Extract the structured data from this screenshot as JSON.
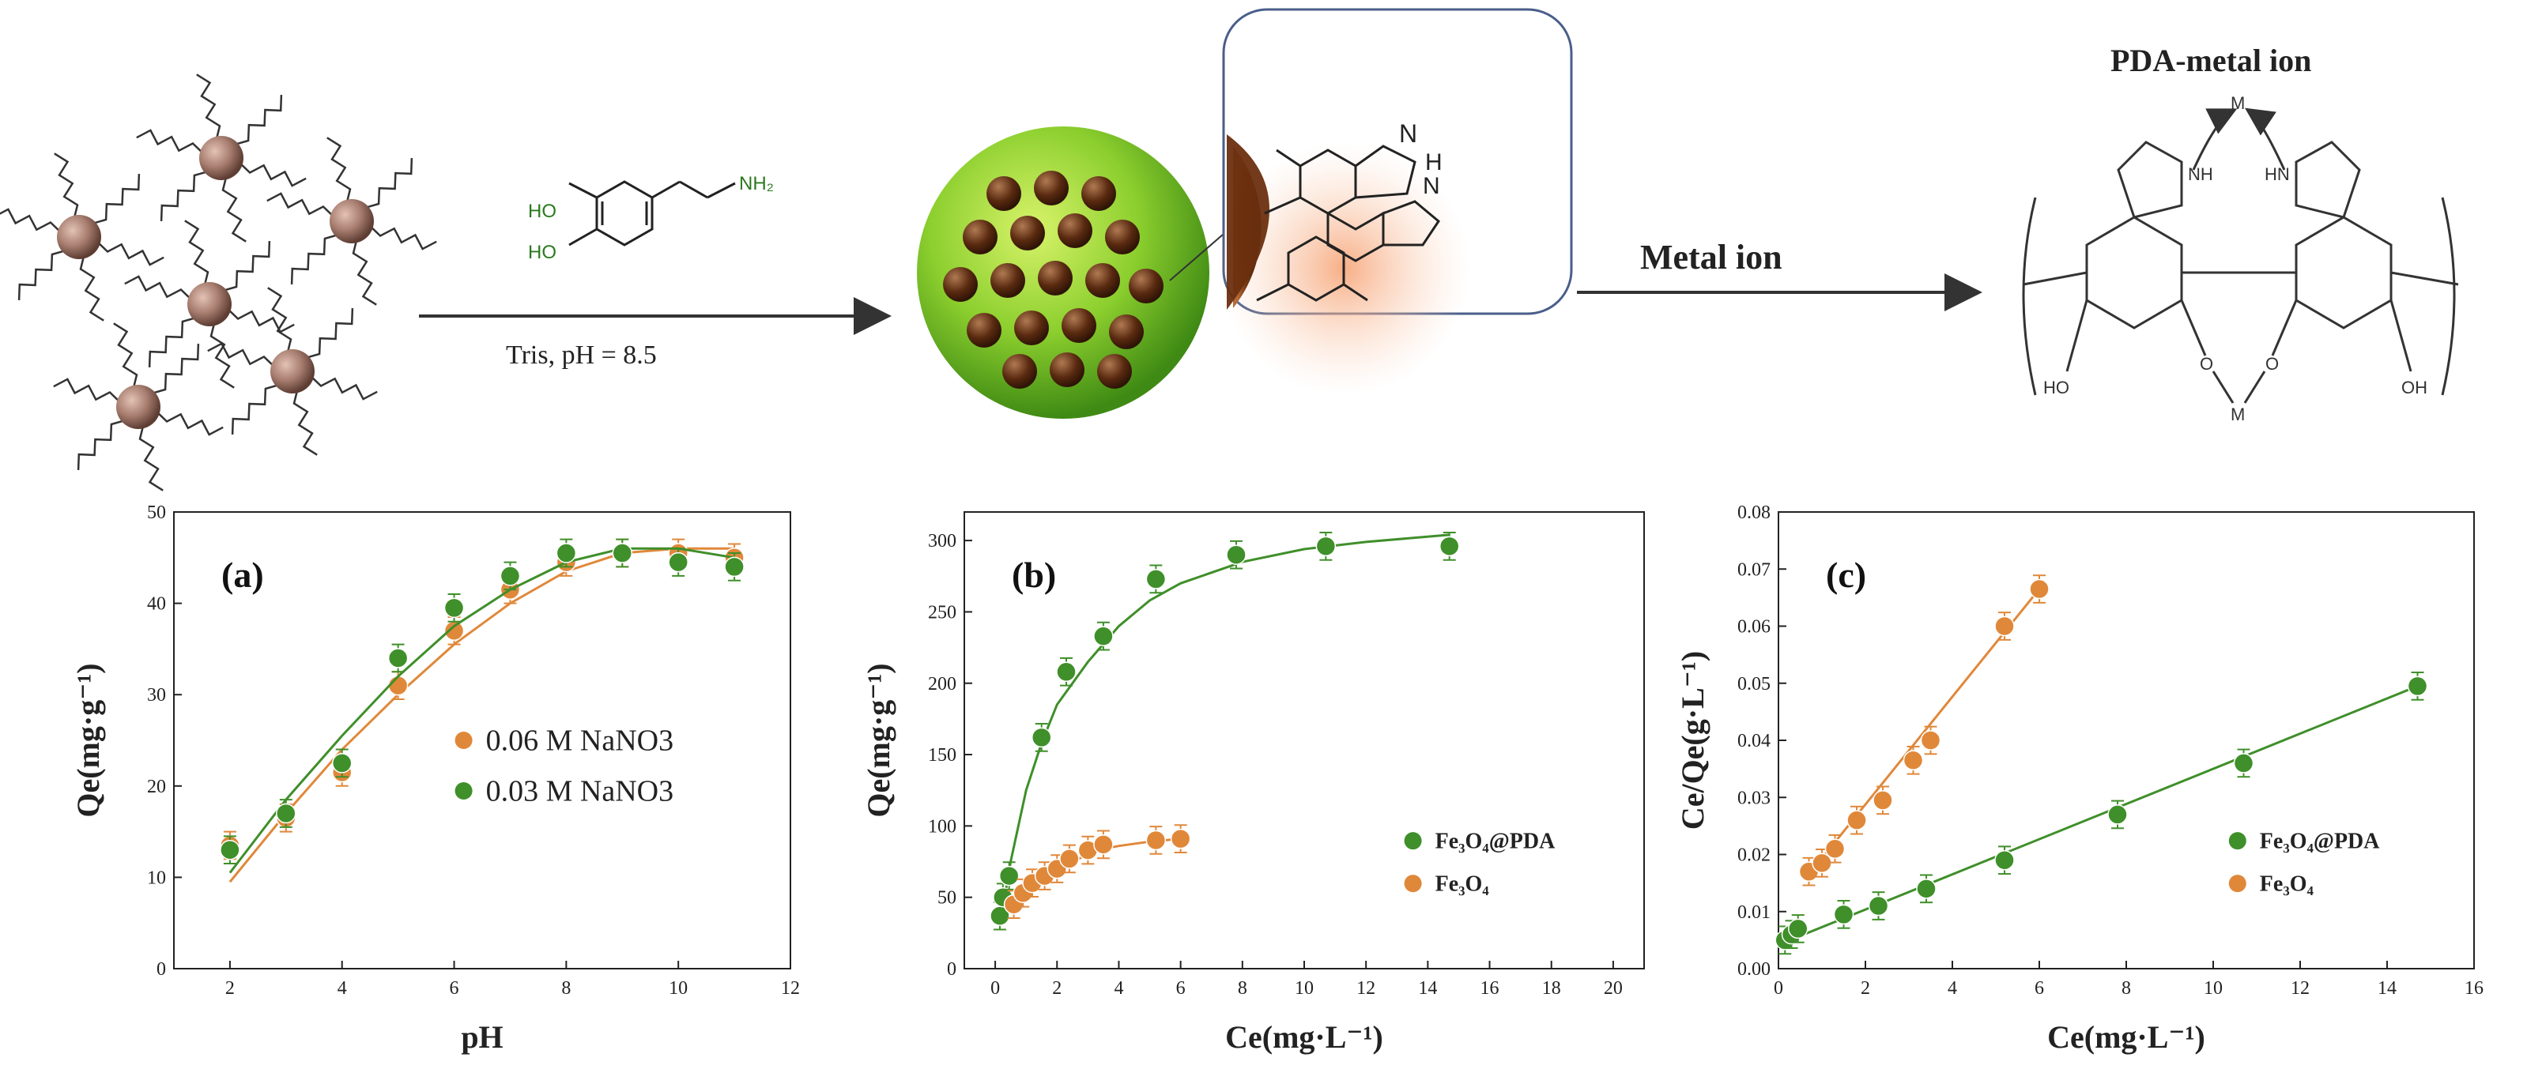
{
  "scheme": {
    "reagent_oh_top": "HO",
    "reagent_oh_bottom": "HO",
    "reagent_amine": "NH₂",
    "condition": "Tris, pH = 8.5",
    "metal_ion_label": "Metal ion",
    "pda_metal_title": "PDA-metal ion",
    "n_label": "N",
    "h_label": "H",
    "nh_label": "N",
    "struct_nh_left": "NH",
    "struct_hn_right": "HN",
    "struct_m_top": "M",
    "struct_m_bottom": "M",
    "struct_o_left": "O",
    "struct_o_right": "O",
    "struct_ho": "HO",
    "struct_oh": "OH"
  },
  "colors": {
    "green": "#3f8f2a",
    "orange": "#e0883a",
    "sphere_green": "#8ccf2e",
    "particle_brown": "#5a2a10"
  },
  "chart_data": [
    {
      "type": "scatter",
      "panel_label": "(a)",
      "xlabel": "pH",
      "ylabel": "Qe(mg·g⁻¹)",
      "xlim": [
        1,
        12
      ],
      "ylim": [
        0,
        50
      ],
      "xticks": [
        2,
        4,
        6,
        8,
        10,
        12
      ],
      "yticks": [
        0,
        10,
        20,
        30,
        40,
        50
      ],
      "legend_position": "center-right",
      "series": [
        {
          "name": "0.06 M NaNO3",
          "color": "#e0883a",
          "x": [
            2,
            3,
            4,
            5,
            6,
            7,
            8,
            9,
            10,
            11
          ],
          "y": [
            13.5,
            16.5,
            21.5,
            31,
            37,
            41.5,
            44.5,
            45.5,
            45.5,
            45
          ],
          "fit": [
            [
              2,
              9.5
            ],
            [
              3,
              17
            ],
            [
              4,
              24
            ],
            [
              5,
              30
            ],
            [
              6,
              35.5
            ],
            [
              7,
              40
            ],
            [
              8,
              43.5
            ],
            [
              9,
              45.5
            ],
            [
              10,
              46
            ],
            [
              11,
              46
            ]
          ]
        },
        {
          "name": "0.03 M NaNO3",
          "color": "#3f8f2a",
          "x": [
            2,
            3,
            4,
            5,
            6,
            7,
            8,
            9,
            10,
            11
          ],
          "y": [
            13,
            17,
            22.5,
            34,
            39.5,
            43,
            45.5,
            45.5,
            44.5,
            44
          ],
          "fit": [
            [
              2,
              10.5
            ],
            [
              3,
              18.5
            ],
            [
              4,
              25.5
            ],
            [
              5,
              32
            ],
            [
              6,
              37.5
            ],
            [
              7,
              41.5
            ],
            [
              8,
              44.5
            ],
            [
              9,
              46
            ],
            [
              10,
              46
            ],
            [
              11,
              45
            ]
          ]
        }
      ]
    },
    {
      "type": "scatter",
      "panel_label": "(b)",
      "xlabel": "Ce(mg·L⁻¹)",
      "ylabel": "Qe(mg·g⁻¹)",
      "xlim": [
        -1,
        21
      ],
      "ylim": [
        0,
        320
      ],
      "xticks": [
        0,
        2,
        4,
        6,
        8,
        10,
        12,
        14,
        16,
        18,
        20
      ],
      "yticks": [
        0,
        50,
        100,
        150,
        200,
        250,
        300
      ],
      "legend_position": "lower-right",
      "series": [
        {
          "name": "Fe₃O₄@PDA",
          "color": "#3f8f2a",
          "x": [
            0.15,
            0.25,
            0.45,
            1.5,
            2.3,
            3.5,
            5.2,
            7.8,
            10.7,
            14.7
          ],
          "y": [
            37,
            50,
            65,
            162,
            208,
            233,
            273,
            290,
            296,
            296
          ],
          "fit": [
            [
              0.15,
              30
            ],
            [
              0.5,
              75
            ],
            [
              1,
              125
            ],
            [
              1.5,
              158
            ],
            [
              2,
              185
            ],
            [
              3,
              215
            ],
            [
              4,
              240
            ],
            [
              5,
              258
            ],
            [
              6,
              270
            ],
            [
              8,
              285
            ],
            [
              10,
              294
            ],
            [
              12,
              299
            ],
            [
              14.7,
              304
            ]
          ]
        },
        {
          "name": "Fe₃O₄",
          "color": "#e0883a",
          "x": [
            0.6,
            0.9,
            1.2,
            1.6,
            2.0,
            2.4,
            3.0,
            3.5,
            5.2,
            6.0
          ],
          "y": [
            45,
            53,
            60,
            65,
            70,
            77,
            83,
            87,
            90,
            91
          ],
          "fit": [
            [
              0.5,
              43
            ],
            [
              1,
              55
            ],
            [
              1.5,
              63
            ],
            [
              2,
              69
            ],
            [
              2.5,
              75
            ],
            [
              3,
              80
            ],
            [
              3.5,
              84
            ],
            [
              4,
              86
            ],
            [
              5,
              89
            ],
            [
              6,
              91
            ]
          ]
        }
      ]
    },
    {
      "type": "scatter",
      "panel_label": "(c)",
      "xlabel": "Ce(mg·L⁻¹)",
      "ylabel": "Ce/Qe(g·L⁻¹)",
      "xlim": [
        0,
        16
      ],
      "ylim": [
        0,
        0.08
      ],
      "xticks": [
        0,
        2,
        4,
        6,
        8,
        10,
        12,
        14,
        16
      ],
      "yticks": [
        0.0,
        0.01,
        0.02,
        0.03,
        0.04,
        0.05,
        0.06,
        0.07,
        0.08
      ],
      "legend_position": "lower-right",
      "series": [
        {
          "name": "Fe₃O₄@PDA",
          "color": "#3f8f2a",
          "x": [
            0.15,
            0.3,
            0.45,
            1.5,
            2.3,
            3.4,
            5.2,
            7.8,
            10.7,
            14.7
          ],
          "y": [
            0.005,
            0.006,
            0.007,
            0.0095,
            0.011,
            0.014,
            0.019,
            0.027,
            0.036,
            0.0495
          ],
          "fit": [
            [
              0.1,
              0.0045
            ],
            [
              14.7,
              0.0495
            ]
          ]
        },
        {
          "name": "Fe₃O₄",
          "color": "#e0883a",
          "x": [
            0.7,
            1.0,
            1.3,
            1.8,
            2.4,
            3.1,
            3.5,
            5.2,
            6.0
          ],
          "y": [
            0.017,
            0.0185,
            0.021,
            0.026,
            0.0295,
            0.0365,
            0.04,
            0.06,
            0.0665
          ],
          "fit": [
            [
              0.7,
              0.0165
            ],
            [
              6.0,
              0.0665
            ]
          ]
        }
      ]
    }
  ]
}
